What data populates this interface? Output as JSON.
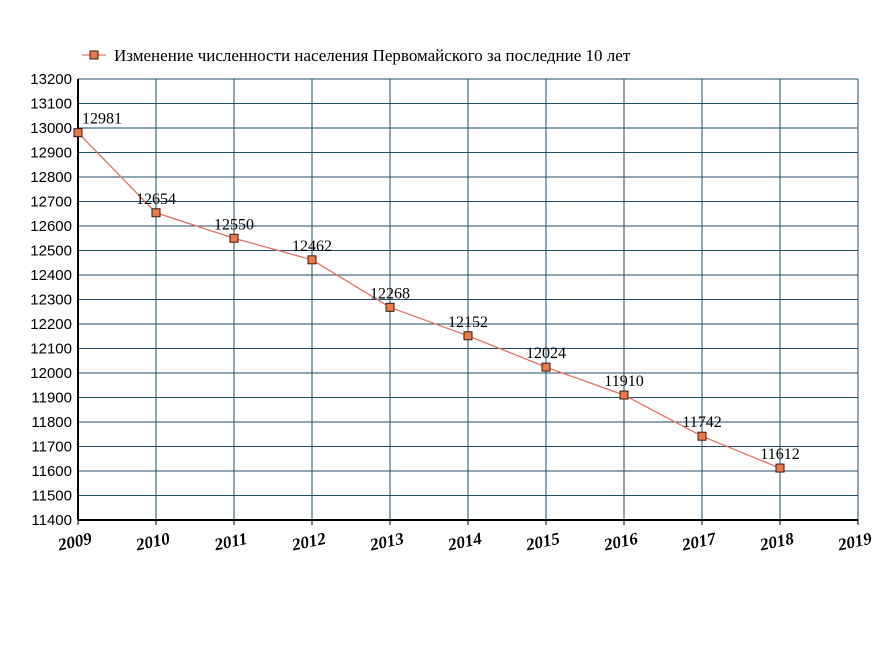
{
  "chart_data": {
    "type": "line",
    "title": "",
    "xlabel": "",
    "ylabel": "",
    "x": [
      2009,
      2010,
      2011,
      2012,
      2013,
      2014,
      2015,
      2016,
      2017,
      2018
    ],
    "xticks": [
      "2009",
      "2010",
      "2011",
      "2012",
      "2013",
      "2014",
      "2015",
      "2016",
      "2017",
      "2018",
      "2019"
    ],
    "xlim": [
      2009,
      2019
    ],
    "ylim": [
      11400,
      13200
    ],
    "ystep": 100,
    "grid": true,
    "legend_position": "top",
    "series": [
      {
        "name": "Изменение численности населения Первомайского за последние 10 лет",
        "values": [
          12981,
          12654,
          12550,
          12462,
          12268,
          12152,
          12024,
          11910,
          11742,
          11612
        ],
        "color": "#e0736a",
        "marker_color": "#e87a4a"
      }
    ]
  },
  "colors": {
    "grid": "#1f4e66",
    "axis": "#000000",
    "marker_border": "#3a1a10"
  }
}
